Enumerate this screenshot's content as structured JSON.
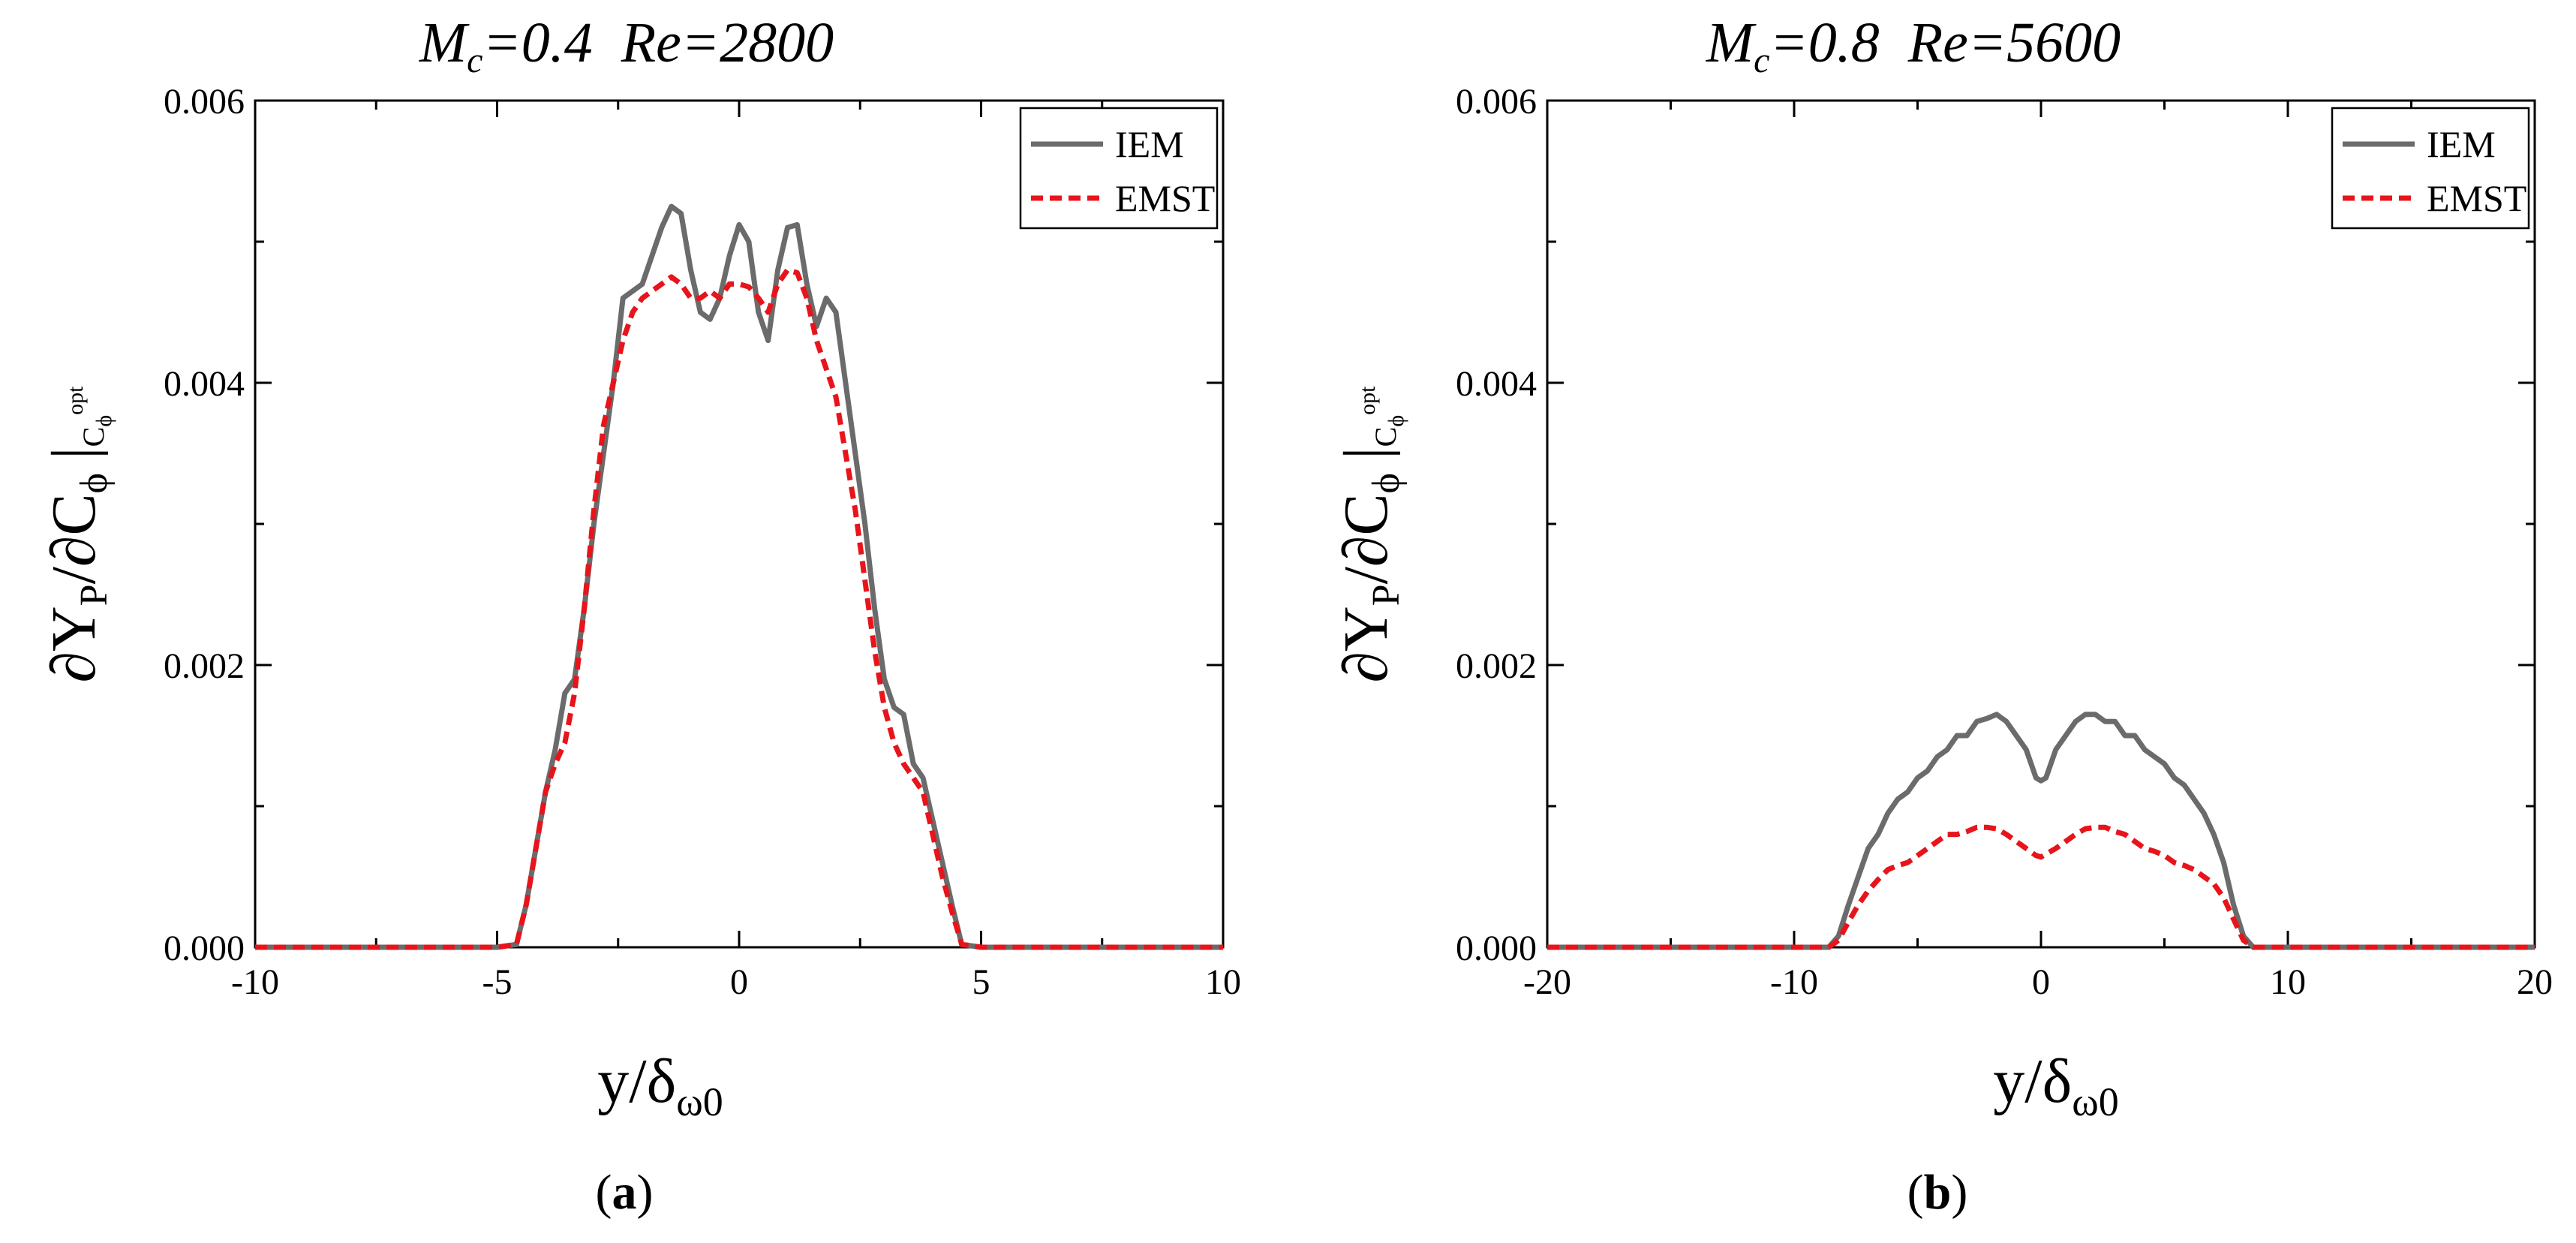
{
  "chart_data": [
    {
      "type": "line",
      "panel_label": "(a)",
      "panel_letter": "a",
      "title": {
        "m_sym": "M",
        "m_sub": "c",
        "m_val": "=0.4",
        "re": "Re=2800"
      },
      "xlabel": {
        "y": "y/δ",
        "sub": "ω0"
      },
      "ylabel": {
        "main": "∂Y",
        "sub_p": "P",
        "mid": "/∂C",
        "sub_phi": "ϕ",
        "bar": "|",
        "eval_c": "C",
        "eval_phi": "ϕ",
        "eval_opt": "opt"
      },
      "xlim": [
        -10,
        10
      ],
      "ylim": [
        0,
        0.006
      ],
      "xticks": [
        -10,
        -5,
        0,
        5,
        10
      ],
      "xtick_labels": [
        "-10",
        "-5",
        "0",
        "5",
        "10"
      ],
      "yticks": [
        0,
        0.002,
        0.004,
        0.006
      ],
      "ytick_labels": [
        "0.000",
        "0.002",
        "0.004",
        "0.006"
      ],
      "legend_position": "top-right",
      "series": [
        {
          "name": "IEM",
          "color": "#6b6b6b",
          "style": "solid",
          "x": [
            -10,
            -5,
            -4.6,
            -4.4,
            -4.2,
            -4.0,
            -3.8,
            -3.6,
            -3.4,
            -3.2,
            -3.0,
            -2.8,
            -2.6,
            -2.4,
            -2.2,
            -2.0,
            -1.8,
            -1.6,
            -1.4,
            -1.2,
            -1.0,
            -0.8,
            -0.6,
            -0.4,
            -0.2,
            0.0,
            0.2,
            0.4,
            0.6,
            0.8,
            1.0,
            1.2,
            1.4,
            1.6,
            1.8,
            2.0,
            2.2,
            2.4,
            2.6,
            2.8,
            3.0,
            3.2,
            3.4,
            3.6,
            3.8,
            4.0,
            4.2,
            4.4,
            4.6,
            5,
            10
          ],
          "y": [
            0,
            0,
            2e-05,
            0.0003,
            0.0007,
            0.0011,
            0.0014,
            0.0018,
            0.0019,
            0.0024,
            0.003,
            0.0035,
            0.004,
            0.0046,
            0.00465,
            0.0047,
            0.0049,
            0.0051,
            0.00525,
            0.0052,
            0.0048,
            0.0045,
            0.00445,
            0.0046,
            0.0049,
            0.00512,
            0.005,
            0.0045,
            0.0043,
            0.0048,
            0.0051,
            0.00512,
            0.0047,
            0.0044,
            0.0046,
            0.0045,
            0.004,
            0.0035,
            0.003,
            0.0024,
            0.0019,
            0.0017,
            0.00165,
            0.0013,
            0.0012,
            0.0009,
            0.0006,
            0.0003,
            2e-05,
            0,
            0
          ]
        },
        {
          "name": "EMST",
          "color": "#e8141b",
          "style": "dashed",
          "x": [
            -10,
            -5,
            -4.6,
            -4.4,
            -4.2,
            -4.0,
            -3.8,
            -3.6,
            -3.4,
            -3.2,
            -3.0,
            -2.8,
            -2.6,
            -2.4,
            -2.2,
            -2.0,
            -1.8,
            -1.6,
            -1.4,
            -1.2,
            -1.0,
            -0.8,
            -0.6,
            -0.4,
            -0.2,
            0.0,
            0.2,
            0.4,
            0.6,
            0.8,
            1.0,
            1.2,
            1.4,
            1.6,
            1.8,
            2.0,
            2.2,
            2.4,
            2.6,
            2.8,
            3.0,
            3.2,
            3.4,
            3.6,
            3.8,
            4.0,
            4.2,
            4.4,
            4.6,
            5,
            10
          ],
          "y": [
            0,
            0,
            2e-05,
            0.0003,
            0.0007,
            0.0011,
            0.0013,
            0.00145,
            0.0018,
            0.0024,
            0.0031,
            0.0037,
            0.004,
            0.0043,
            0.0045,
            0.0046,
            0.00465,
            0.0047,
            0.00475,
            0.0047,
            0.0046,
            0.0046,
            0.00465,
            0.0046,
            0.0047,
            0.0047,
            0.00468,
            0.0046,
            0.0045,
            0.0047,
            0.0048,
            0.00478,
            0.0046,
            0.0043,
            0.0041,
            0.0039,
            0.0035,
            0.0031,
            0.0026,
            0.0021,
            0.0017,
            0.00145,
            0.0013,
            0.0012,
            0.0011,
            0.0008,
            0.0005,
            0.00025,
            2e-05,
            0,
            0
          ]
        }
      ]
    },
    {
      "type": "line",
      "panel_label": "(b)",
      "panel_letter": "b",
      "title": {
        "m_sym": "M",
        "m_sub": "c",
        "m_val": "=0.8",
        "re": "Re=5600"
      },
      "xlabel": {
        "y": "y/δ",
        "sub": "ω0"
      },
      "ylabel": {
        "main": "∂Y",
        "sub_p": "P",
        "mid": "/∂C",
        "sub_phi": "ϕ",
        "bar": "|",
        "eval_c": "C",
        "eval_phi": "ϕ",
        "eval_opt": "opt"
      },
      "xlim": [
        -20,
        20
      ],
      "ylim": [
        0,
        0.006
      ],
      "xticks": [
        -20,
        -10,
        0,
        10,
        20
      ],
      "xtick_labels": [
        "-20",
        "-10",
        "0",
        "10",
        "20"
      ],
      "yticks": [
        0,
        0.002,
        0.004,
        0.006
      ],
      "ytick_labels": [
        "0.000",
        "0.002",
        "0.004",
        "0.006"
      ],
      "legend_position": "top-right",
      "series": [
        {
          "name": "IEM",
          "color": "#6b6b6b",
          "style": "solid",
          "x": [
            -20,
            -8.6,
            -8.2,
            -7.8,
            -7.4,
            -7.0,
            -6.6,
            -6.2,
            -5.8,
            -5.4,
            -5.0,
            -4.6,
            -4.2,
            -3.8,
            -3.4,
            -3.0,
            -2.6,
            -2.2,
            -1.8,
            -1.4,
            -1.0,
            -0.6,
            -0.2,
            0.0,
            0.2,
            0.6,
            1.0,
            1.4,
            1.8,
            2.2,
            2.6,
            3.0,
            3.4,
            3.8,
            4.2,
            4.6,
            5.0,
            5.4,
            5.8,
            6.2,
            6.6,
            7.0,
            7.4,
            7.8,
            8.2,
            8.6,
            20
          ],
          "y": [
            0,
            0,
            8e-05,
            0.0003,
            0.0005,
            0.0007,
            0.0008,
            0.00095,
            0.00105,
            0.0011,
            0.0012,
            0.00125,
            0.00135,
            0.0014,
            0.0015,
            0.0015,
            0.0016,
            0.00162,
            0.00165,
            0.0016,
            0.0015,
            0.0014,
            0.0012,
            0.00118,
            0.0012,
            0.0014,
            0.0015,
            0.0016,
            0.00165,
            0.00165,
            0.0016,
            0.0016,
            0.0015,
            0.0015,
            0.0014,
            0.00135,
            0.0013,
            0.0012,
            0.00115,
            0.00105,
            0.00095,
            0.0008,
            0.0006,
            0.0003,
            8e-05,
            0,
            0
          ]
        },
        {
          "name": "EMST",
          "color": "#e8141b",
          "style": "dashed",
          "x": [
            -20,
            -8.6,
            -8.2,
            -7.8,
            -7.4,
            -7.0,
            -6.6,
            -6.2,
            -5.8,
            -5.4,
            -5.0,
            -4.6,
            -4.2,
            -3.8,
            -3.4,
            -3.0,
            -2.6,
            -2.2,
            -1.8,
            -1.4,
            -1.0,
            -0.6,
            -0.2,
            0.0,
            0.2,
            0.6,
            1.0,
            1.4,
            1.8,
            2.2,
            2.6,
            3.0,
            3.4,
            3.8,
            4.2,
            4.6,
            5.0,
            5.4,
            5.8,
            6.2,
            6.6,
            7.0,
            7.4,
            7.8,
            8.2,
            8.6,
            20
          ],
          "y": [
            0,
            0,
            5e-05,
            0.00018,
            0.0003,
            0.0004,
            0.00048,
            0.00055,
            0.00058,
            0.0006,
            0.00065,
            0.0007,
            0.00075,
            0.0008,
            0.0008,
            0.00082,
            0.00085,
            0.00085,
            0.00084,
            0.0008,
            0.00075,
            0.0007,
            0.00065,
            0.00064,
            0.00066,
            0.0007,
            0.00075,
            0.0008,
            0.00084,
            0.00085,
            0.00085,
            0.00082,
            0.0008,
            0.00075,
            0.0007,
            0.00068,
            0.00065,
            0.0006,
            0.00058,
            0.00055,
            0.0005,
            0.00045,
            0.00035,
            0.0002,
            5e-05,
            0,
            0
          ]
        }
      ]
    }
  ]
}
